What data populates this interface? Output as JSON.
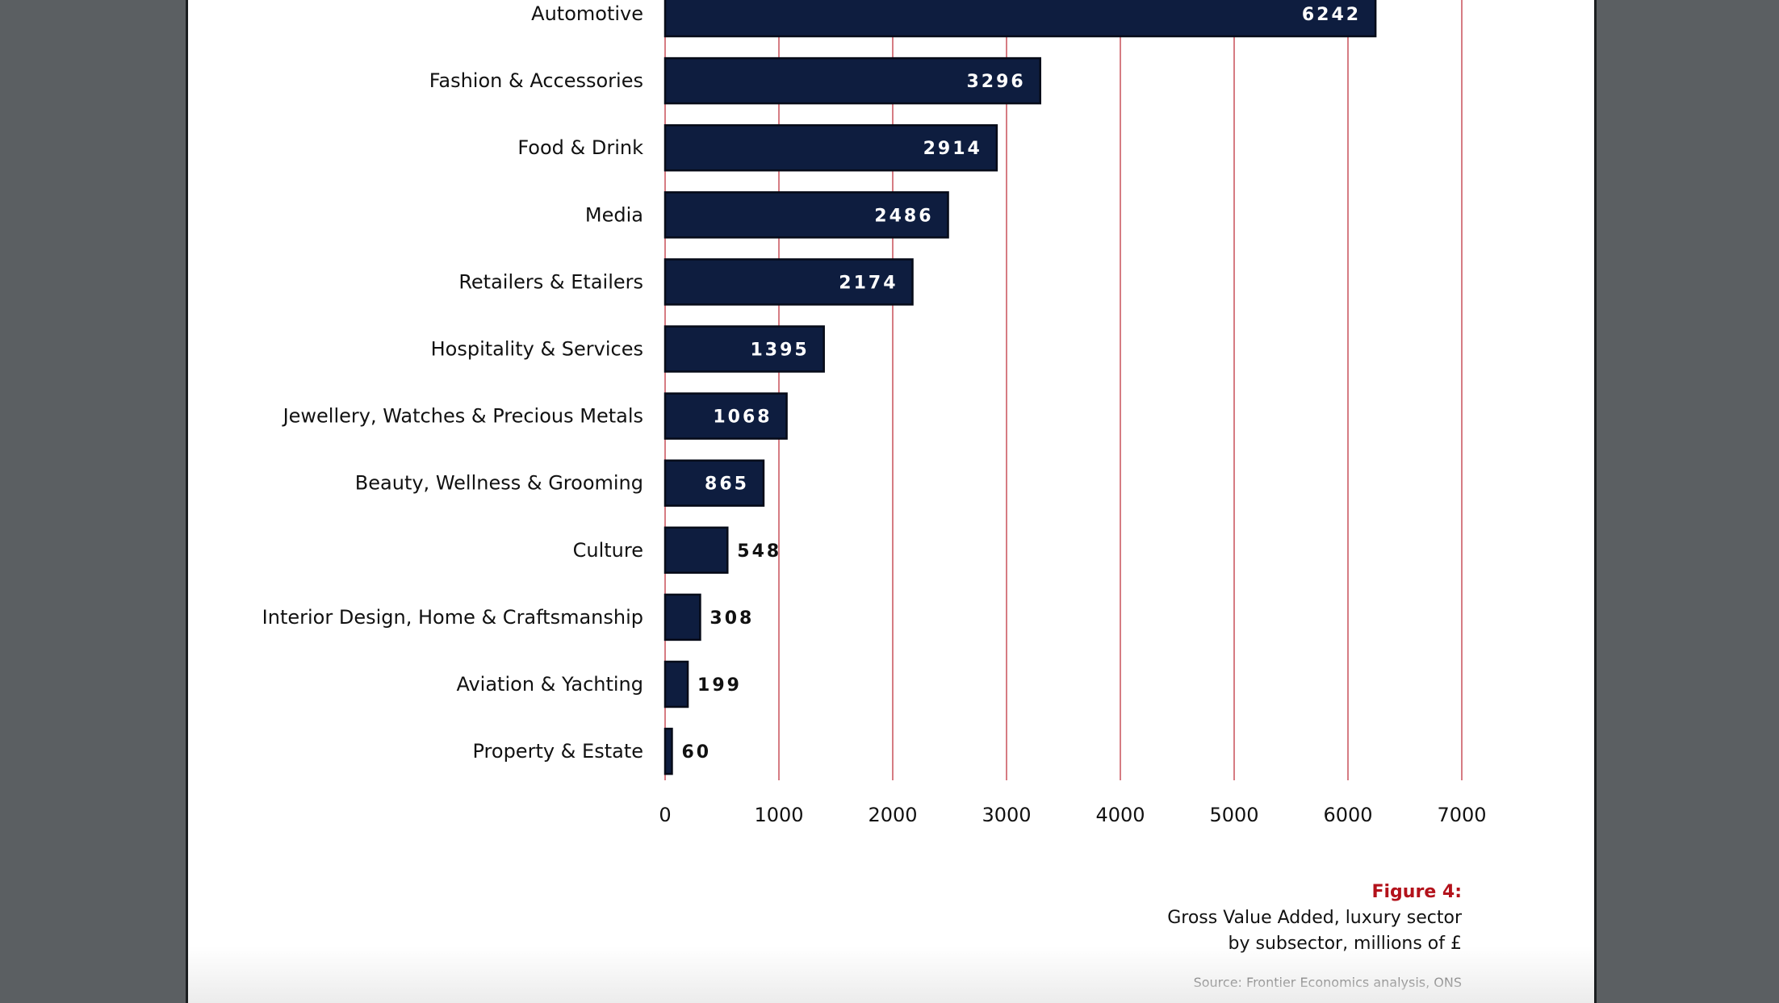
{
  "chart_data": {
    "type": "bar",
    "orientation": "horizontal",
    "categories": [
      "Automotive",
      "Fashion & Accessories",
      "Food & Drink",
      "Media",
      "Retailers & Etailers",
      "Hospitality & Services",
      "Jewellery, Watches & Precious Metals",
      "Beauty, Wellness & Grooming",
      "Culture",
      "Interior Design, Home & Craftsmanship",
      "Aviation & Yachting",
      "Property & Estate"
    ],
    "values": [
      6242,
      3296,
      2914,
      2486,
      2174,
      1395,
      1068,
      865,
      548,
      308,
      199,
      60
    ],
    "data_labels": [
      "6242",
      "3296",
      "2914",
      "2486",
      "2174",
      "1395",
      "1068",
      "865",
      "548",
      "308",
      "199",
      "60"
    ],
    "xlim": [
      0,
      7000
    ],
    "xticks": [
      0,
      1000,
      2000,
      3000,
      4000,
      5000,
      6000,
      7000
    ],
    "xtick_labels": [
      "0",
      "1000",
      "2000",
      "3000",
      "4000",
      "5000",
      "6000",
      "7000"
    ],
    "grid": "vertical",
    "colors": {
      "bar": "#0e1d3f",
      "bar_border": "#060b18",
      "gridline": "#c9505a",
      "label_inside": "#ffffff",
      "label_outside": "#111111"
    }
  },
  "caption": {
    "figure_label": "Figure 4:",
    "title_line1": "Gross Value Added, luxury sector",
    "title_line2": "by subsector, millions of £",
    "source": "Source: Frontier Economics analysis, ONS",
    "figure_label_color": "#b3121b"
  }
}
